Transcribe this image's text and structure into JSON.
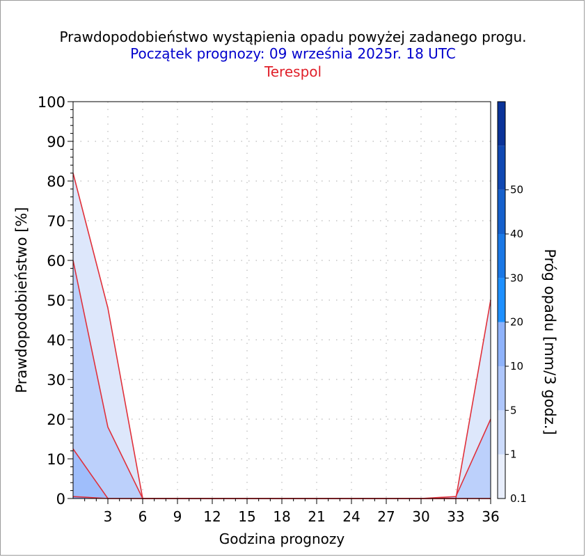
{
  "header": {
    "title": "Prawdopodobieństwo wystąpienia opadu powyżej zadanego progu.",
    "subtitle": "Początek prognozy: 09 września 2025r. 18 UTC",
    "location": "Terespol"
  },
  "colors": {
    "title": "#000000",
    "subtitle": "#0000cc",
    "location": "#e0202a",
    "series_line": "#e0303a",
    "grid": "#b8b8b8",
    "fill_0_1": "#dde7fb",
    "fill_1": "#bcd0fb",
    "fill_5": "#9fbefb",
    "fill_10": "#7faafb"
  },
  "chart_data": {
    "type": "area",
    "title": "Prawdopodobieństwo wystąpienia opadu powyżej zadanego progu.",
    "xlabel": "Godzina prognozy",
    "ylabel": "Prawdopodobieństwo [%]",
    "xlim": [
      0,
      36
    ],
    "ylim": [
      0,
      100
    ],
    "x_ticks": [
      3,
      6,
      9,
      12,
      15,
      18,
      21,
      24,
      27,
      30,
      33,
      36
    ],
    "y_ticks": [
      0,
      10,
      20,
      30,
      40,
      50,
      60,
      70,
      80,
      90,
      100
    ],
    "grid": true,
    "x": [
      0,
      3,
      6,
      9,
      12,
      15,
      18,
      21,
      24,
      27,
      30,
      33,
      36
    ],
    "series": [
      {
        "name": "0.1",
        "values": [
          82,
          48,
          0,
          0,
          0,
          0,
          0,
          0,
          0,
          0,
          0,
          0,
          50
        ],
        "color": "#dde7fb"
      },
      {
        "name": "1",
        "values": [
          60,
          18,
          0,
          0,
          0,
          0,
          0,
          0,
          0,
          0,
          0,
          0.5,
          20
        ],
        "color": "#bcd0fb"
      },
      {
        "name": "5",
        "values": [
          12.5,
          0,
          0,
          0,
          0,
          0,
          0,
          0,
          0,
          0,
          0,
          0,
          0
        ],
        "color": "#9fbefb"
      },
      {
        "name": "10",
        "values": [
          0.5,
          0,
          0,
          0,
          0,
          0,
          0,
          0,
          0,
          0,
          0,
          0,
          0
        ],
        "color": "#7faafb"
      }
    ],
    "colorbar": {
      "label": "Próg opadu [mm/3 godz.]",
      "position": "right",
      "labels": [
        "0.1",
        "1",
        "5",
        "10",
        "20",
        "30",
        "40",
        "50"
      ],
      "colors": [
        "#e8eefc",
        "#ccdbfb",
        "#aec6fb",
        "#8fb3fb",
        "#1e90ff",
        "#1a78e6",
        "#1560cc",
        "#1048b3",
        "#0a3399"
      ]
    }
  }
}
